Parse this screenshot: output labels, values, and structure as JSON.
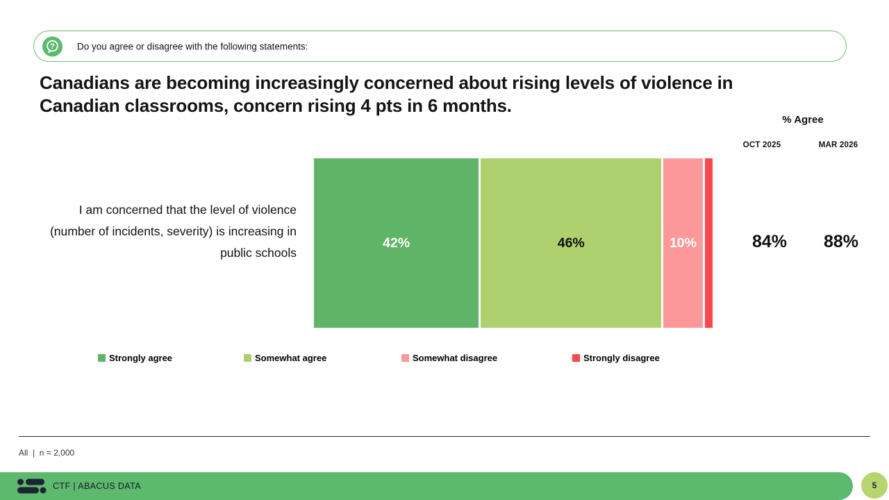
{
  "question_banner": {
    "icon": "question-bubble-icon",
    "text": "Do you agree or disagree with the following statements:"
  },
  "title": "Canadians are becoming increasingly concerned about rising levels of violence in Canadian classrooms, concern rising 4 pts in 6 months.",
  "agree_panel": {
    "header": "% Agree",
    "columns": [
      "OCT 2025",
      "MAR 2026"
    ],
    "values": [
      "84%",
      "88%"
    ]
  },
  "chart_data": {
    "type": "bar",
    "variant": "horizontal-stacked",
    "categories": [
      "I am concerned that the level of violence (number of incidents, severity) is increasing in public schools"
    ],
    "series": [
      {
        "name": "Strongly agree",
        "values": [
          42
        ],
        "color": "#5FB467",
        "label": "42%",
        "label_color": "#FFFFFF"
      },
      {
        "name": "Somewhat agree",
        "values": [
          46
        ],
        "color": "#AFD06E",
        "label": "46%",
        "label_color": "#111111"
      },
      {
        "name": "Somewhat disagree",
        "values": [
          10
        ],
        "color": "#FC989A",
        "label": "10%",
        "label_color": "#FFFFFF"
      },
      {
        "name": "Strongly disagree",
        "values": [
          2
        ],
        "color": "#FB4650",
        "label": "",
        "label_color": "#FFFFFF"
      }
    ],
    "xlim": [
      0,
      100
    ],
    "legend_position": "bottom",
    "summary": {
      "OCT 2025": "84%",
      "MAR 2026": "88%"
    }
  },
  "footer": {
    "note": "All  |  n = 2,000",
    "brand": "CTF | ABACUS DATA",
    "page": "5"
  },
  "colors": {
    "accent_green": "#5CB96D",
    "pill_border": "#6CBE72",
    "icon_green": "#5CBA6E",
    "page_badge_green": "#B6D56F",
    "logo_navy": "#1E2336"
  }
}
